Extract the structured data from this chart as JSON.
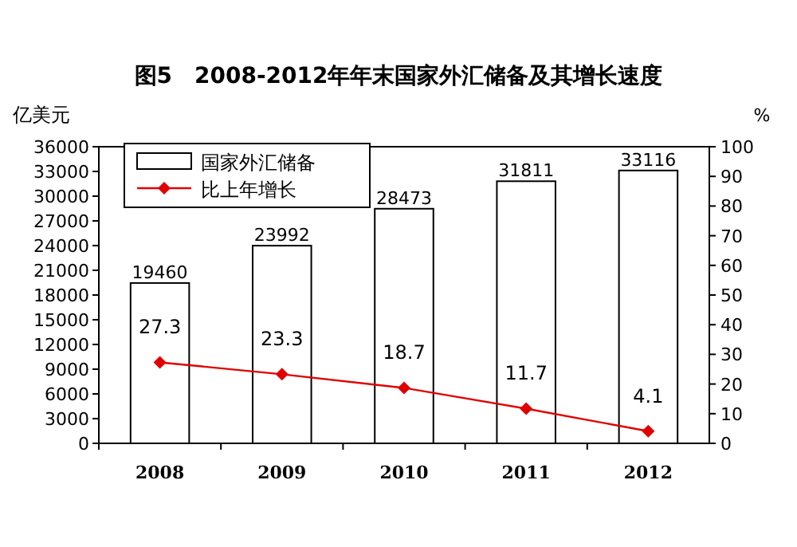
{
  "chart_data": {
    "type": "bar",
    "title": "图5　2008-2012年年末国家外汇储备及其增长速度",
    "ylabel": "亿美元",
    "y2label": "%",
    "categories": [
      "2008",
      "2009",
      "2010",
      "2011",
      "2012"
    ],
    "series": [
      {
        "name": "国家外汇储备",
        "color": "#ffffff",
        "values": [
          19460,
          23992,
          28473,
          31811,
          33116
        ]
      },
      {
        "name": "比上年增长",
        "type": "line",
        "axis": "y2",
        "color": "#e00000",
        "marker": "diamond",
        "values": [
          27.3,
          23.3,
          18.7,
          11.7,
          4.1
        ]
      }
    ],
    "ylim": [
      0,
      36000
    ],
    "yticks": [
      0,
      3000,
      6000,
      9000,
      12000,
      15000,
      18000,
      21000,
      24000,
      27000,
      30000,
      33000,
      36000
    ],
    "y2lim": [
      0,
      100
    ],
    "y2ticks": [
      0,
      10,
      20,
      30,
      40,
      50,
      60,
      70,
      80,
      90,
      100
    ],
    "legend": "top left",
    "data_labels": true
  }
}
